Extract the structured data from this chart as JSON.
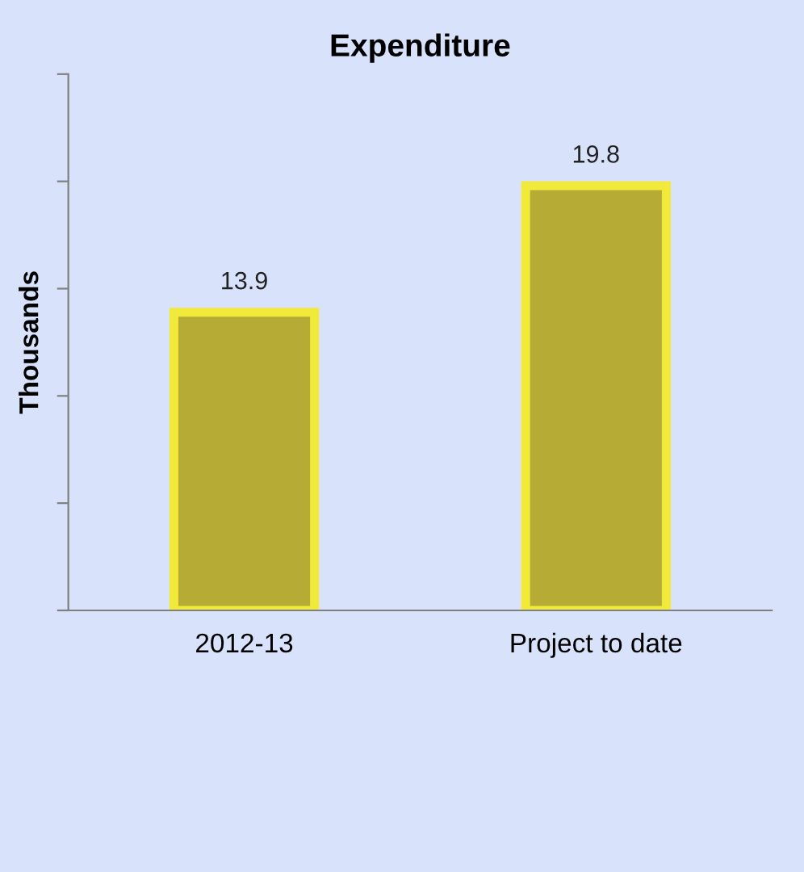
{
  "chart_data": {
    "type": "bar",
    "title": "Expenditure",
    "ylabel": "Thousands",
    "categories": [
      "2012-13",
      "Project to date"
    ],
    "values": [
      13.9,
      19.8
    ],
    "color": "#b5ab35",
    "ylim": [
      0,
      25
    ],
    "yticks": [
      {
        "value": 0,
        "label": null
      },
      {
        "value": 5,
        "label": null
      },
      {
        "value": 10,
        "label": null
      },
      {
        "value": 15,
        "label": null
      },
      {
        "value": 20,
        "label": null
      },
      {
        "value": 25,
        "label": null
      }
    ],
    "tick_labels": "x",
    "data_labels": true,
    "grid": false,
    "legend": false
  }
}
